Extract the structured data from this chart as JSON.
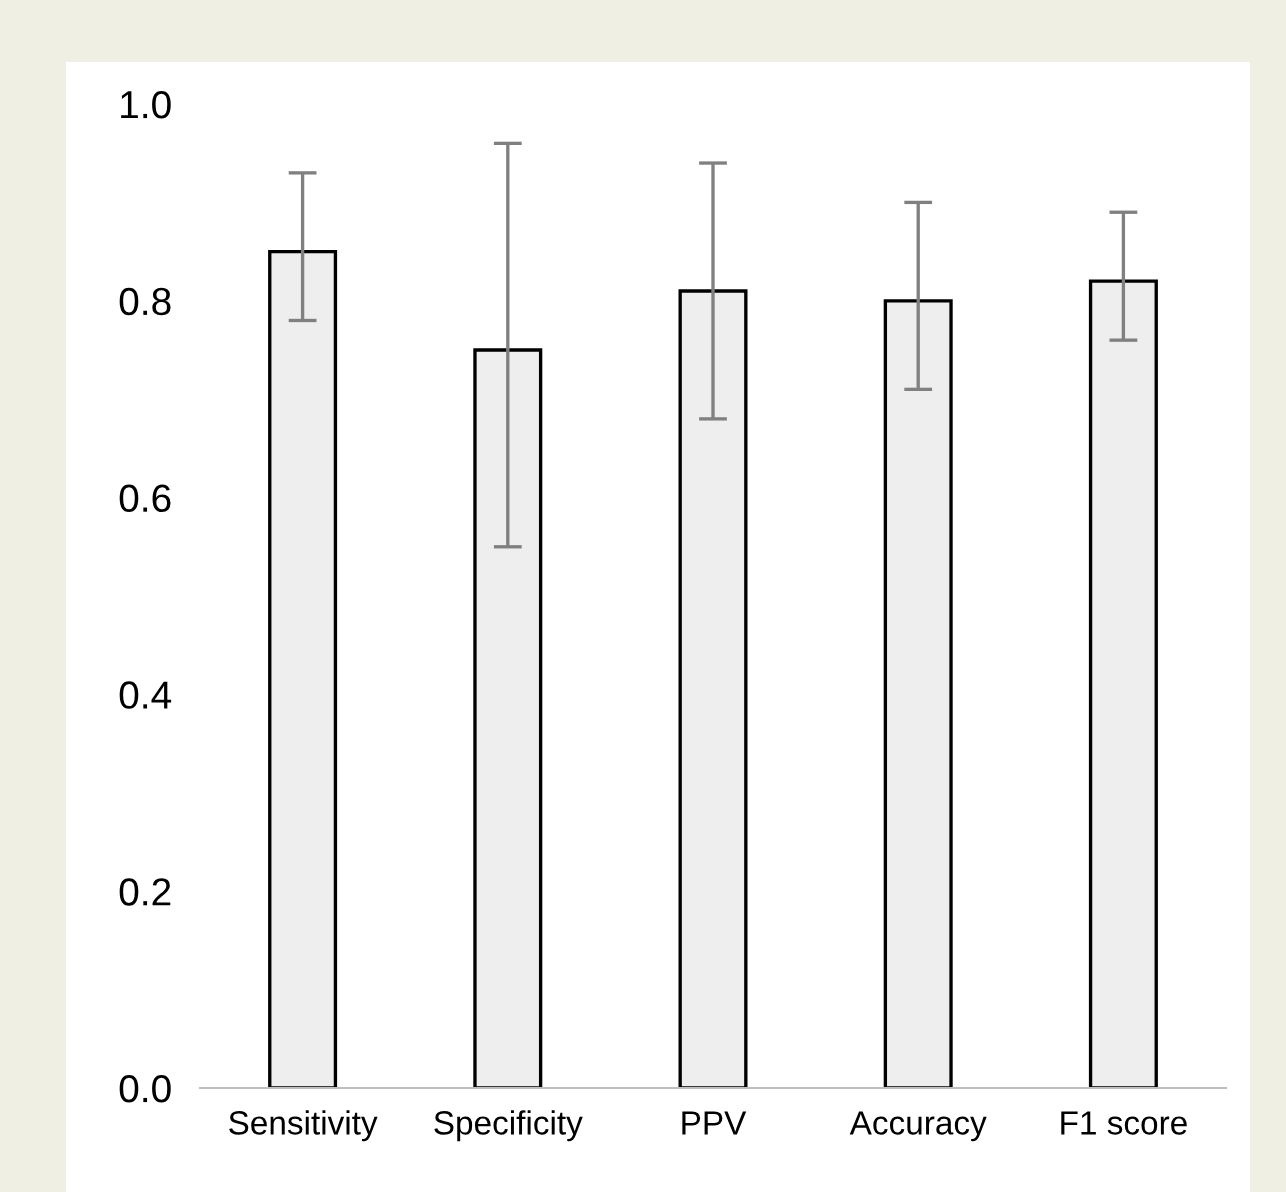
{
  "chart_data": {
    "type": "bar",
    "categories": [
      "Sensitivity",
      "Specificity",
      "PPV",
      "Accuracy",
      "F1 score"
    ],
    "values": [
      0.85,
      0.75,
      0.81,
      0.8,
      0.82
    ],
    "errors": [
      [
        0.78,
        0.93
      ],
      [
        0.55,
        0.96
      ],
      [
        0.68,
        0.94
      ],
      [
        0.71,
        0.9
      ],
      [
        0.76,
        0.89
      ]
    ],
    "color": "#eeeeee",
    "ylim": [
      0,
      1
    ],
    "yticks": [
      {
        "value": 0,
        "label": "0.0"
      },
      {
        "value": 0.2,
        "label": "0.2"
      },
      {
        "value": 0.4,
        "label": "0.4"
      },
      {
        "value": 0.6,
        "label": "0.6"
      },
      {
        "value": 0.8,
        "label": "0.8"
      },
      {
        "value": 1,
        "label": "1.0"
      }
    ],
    "grid": false,
    "legend": false
  }
}
